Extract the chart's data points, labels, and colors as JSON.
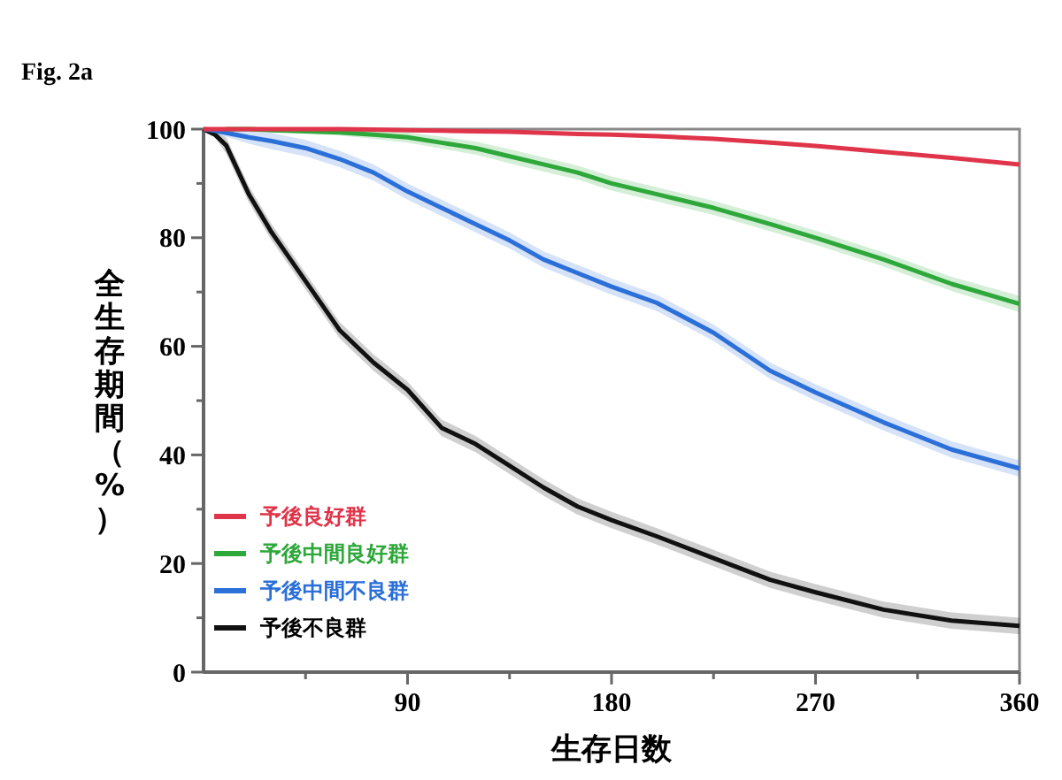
{
  "chart_data": {
    "type": "line",
    "title": "Fig. 2a",
    "xlabel": "生存日数",
    "ylabel": "全生存期間（%）",
    "x": [
      0,
      5,
      10,
      20,
      30,
      45,
      60,
      75,
      90,
      105,
      120,
      135,
      150,
      165,
      180,
      200,
      225,
      250,
      270,
      300,
      330,
      360
    ],
    "xlim": [
      0,
      360
    ],
    "xticks": [
      {
        "value": 45,
        "label": null
      },
      90,
      {
        "value": 135,
        "label": null
      },
      180,
      {
        "value": 225,
        "label": null
      },
      270,
      {
        "value": 315,
        "label": null
      },
      360
    ],
    "ylim": [
      0,
      100
    ],
    "yticks": [
      0,
      {
        "value": 10,
        "label": null
      },
      20,
      {
        "value": 30,
        "label": null
      },
      40,
      {
        "value": 50,
        "label": null
      },
      60,
      {
        "value": 70,
        "label": null
      },
      80,
      {
        "value": 90,
        "label": null
      },
      100
    ],
    "grid": false,
    "legend": "bottom left",
    "marker": "none",
    "line_style": "solid",
    "series": [
      {
        "name": "予後良好群",
        "color": "#e0344a",
        "values": [
          100,
          100,
          100,
          100,
          100,
          100,
          100,
          99.9,
          99.8,
          99.7,
          99.6,
          99.5,
          99.3,
          99.1,
          99,
          98.7,
          98.2,
          97.5,
          96.9,
          95.8,
          94.7,
          93.5
        ]
      },
      {
        "name": "予後中間良好群",
        "color": "#2ea83a",
        "values": [
          null,
          null,
          100,
          100,
          99.8,
          99.6,
          99.4,
          99,
          98.5,
          97.5,
          96.5,
          95,
          93.5,
          92,
          90,
          88,
          85.5,
          82.5,
          80,
          76,
          71.5,
          67.8
        ],
        "lower": [
          null,
          null,
          100,
          100,
          99.6,
          99.2,
          98.8,
          98.2,
          97.5,
          96.4,
          95.3,
          93.7,
          92.2,
          90.7,
          88.7,
          86.7,
          84.2,
          81.2,
          78.7,
          74.7,
          70.2,
          66.3
        ],
        "upper": [
          null,
          null,
          100,
          100,
          100,
          100,
          99.9,
          99.7,
          99.4,
          98.6,
          97.7,
          96.3,
          94.8,
          93.3,
          91.3,
          89.3,
          86.8,
          83.8,
          81.3,
          77.3,
          72.8,
          69.3
        ]
      },
      {
        "name": "予後中間不良群",
        "color": "#2b6fd8",
        "values": [
          100,
          99.7,
          99.3,
          98.5,
          97.8,
          96.5,
          94.5,
          92,
          88.5,
          85.5,
          82.5,
          79.5,
          76,
          73.5,
          71,
          68,
          62.5,
          55.5,
          51.5,
          46,
          41,
          37.5
        ],
        "lower": [
          100,
          99.2,
          98.6,
          97.3,
          96.3,
          95,
          93,
          90.5,
          87,
          84,
          81,
          78,
          74.5,
          72,
          69.5,
          66.5,
          61,
          54,
          50,
          44.5,
          39.5,
          36
        ],
        "upper": [
          100,
          100,
          100,
          99.7,
          99.3,
          98,
          96,
          93.5,
          90,
          87,
          84,
          81,
          77.5,
          75,
          72.5,
          69.5,
          64,
          57,
          53,
          47.5,
          42.5,
          39
        ]
      },
      {
        "name": "予後不良群",
        "color": "#111111",
        "values": [
          100,
          99,
          97,
          88,
          81,
          72,
          63,
          57,
          52,
          45,
          42,
          38,
          34,
          30.5,
          28,
          25,
          21,
          17,
          14.7,
          11.5,
          9.5,
          8.5
        ],
        "lower": [
          100,
          98.5,
          95.5,
          86.5,
          79.5,
          70.5,
          61.5,
          55.5,
          50.5,
          43.5,
          40.5,
          36.5,
          32.5,
          29,
          26.5,
          23.5,
          19.5,
          15.5,
          13.2,
          10,
          8,
          7
        ],
        "upper": [
          100,
          99.5,
          98.5,
          89.5,
          82.5,
          73.5,
          64.5,
          58.5,
          53.5,
          46.5,
          43.5,
          39.5,
          35.5,
          32,
          29.5,
          26.5,
          22.5,
          18.5,
          16.2,
          13,
          11,
          10
        ]
      }
    ]
  }
}
